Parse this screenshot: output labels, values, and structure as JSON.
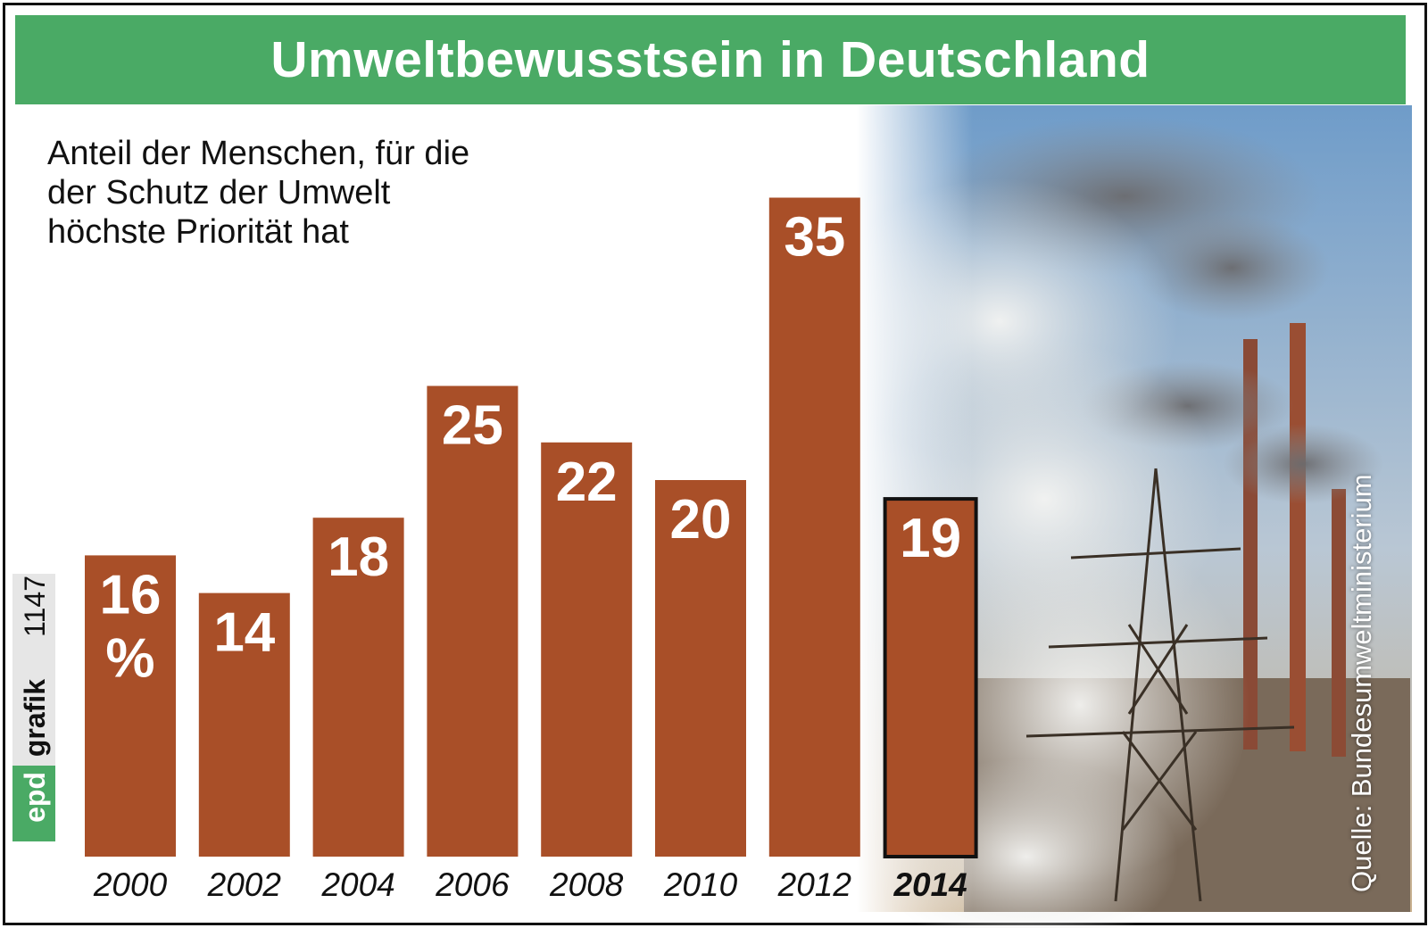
{
  "logo": {
    "brand": "epd",
    "product": "grafik",
    "number": "1147"
  },
  "source": "Quelle: Bundesumweltministerium",
  "colors": {
    "title_bg": "#4aaa65",
    "bar": "#a94f28",
    "highlight_border": "#111111"
  },
  "chart_data": {
    "type": "bar",
    "title": "Umweltbewusstsein in Deutschland",
    "subtitle": [
      "Anteil der Menschen, für die",
      "der Schutz der Umwelt",
      "höchste Priorität hat"
    ],
    "categories": [
      "2000",
      "2002",
      "2004",
      "2006",
      "2008",
      "2010",
      "2012",
      "2014"
    ],
    "values": [
      16,
      14,
      18,
      25,
      22,
      20,
      35,
      19
    ],
    "value_labels": [
      "16",
      "14",
      "18",
      "25",
      "22",
      "20",
      "35",
      "19"
    ],
    "unit": "%",
    "highlight": "2014",
    "xlabel": "",
    "ylabel": "",
    "grid": false
  }
}
